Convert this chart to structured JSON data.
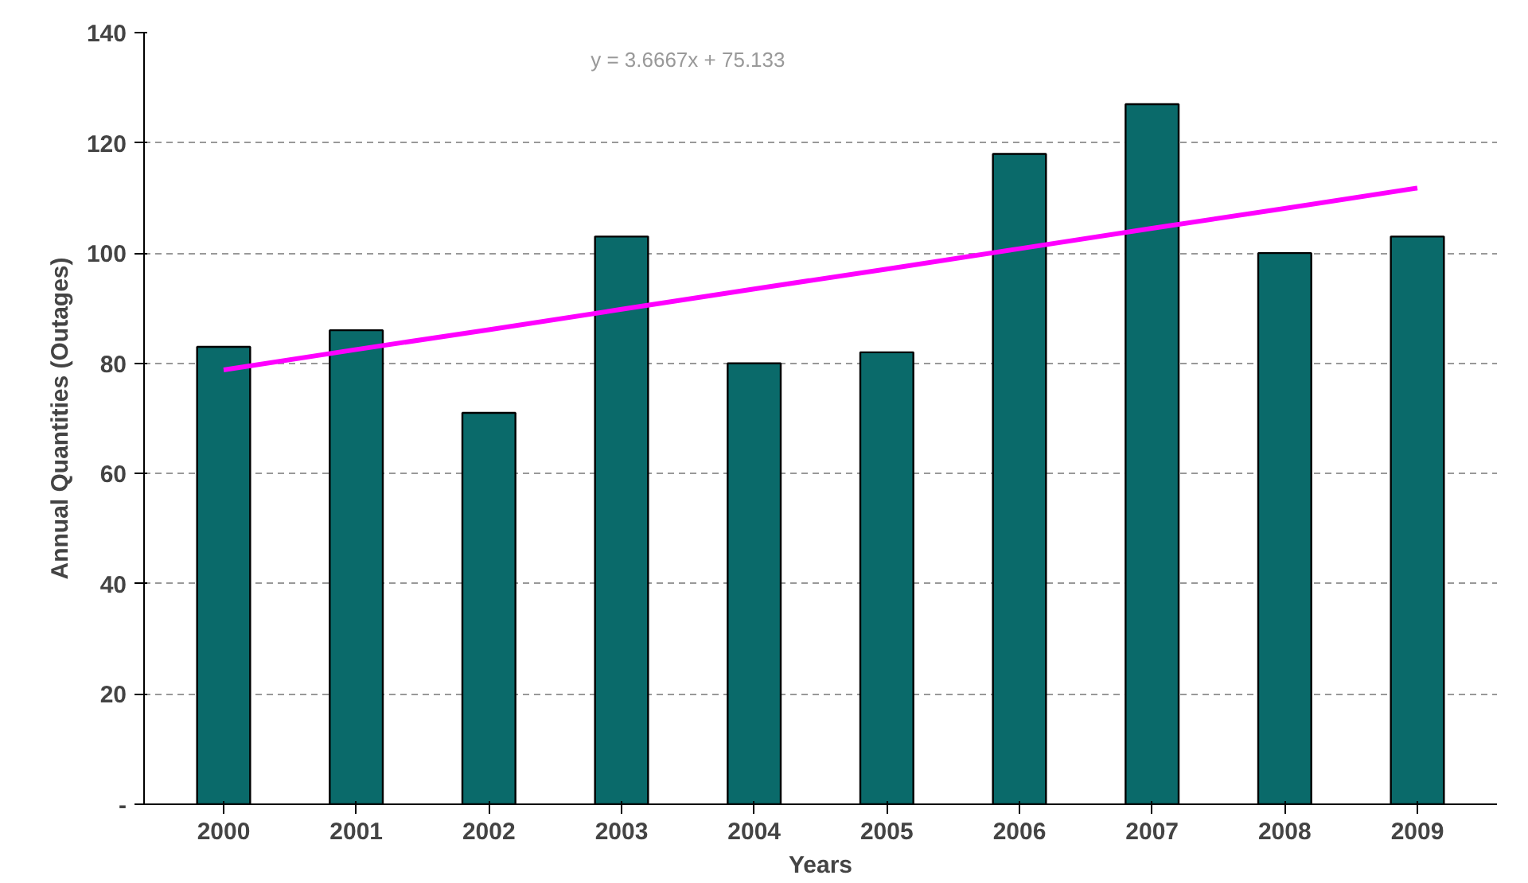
{
  "chart_data": {
    "type": "bar",
    "xlabel": "Years",
    "ylabel": "Annual Quantities (Outages)",
    "categories": [
      "2000",
      "2001",
      "2002",
      "2003",
      "2004",
      "2005",
      "2006",
      "2007",
      "2008",
      "2009"
    ],
    "series": [
      {
        "color": "#0a6a6a",
        "values": [
          83,
          86,
          71,
          103,
          80,
          82,
          118,
          127,
          100,
          103
        ]
      },
      {
        "type": "line",
        "color": "#ff00ff",
        "values": [
          78.8,
          82.5,
          86.1,
          89.8,
          93.5,
          97.1,
          100.8,
          104.5,
          108.1,
          111.8
        ]
      }
    ],
    "ylim": [
      0,
      140
    ],
    "yticks": [
      {
        "value": 0,
        "label": "-"
      },
      20,
      40,
      60,
      80,
      100,
      120,
      140
    ],
    "grid": "y",
    "annotations": [
      "y = 3.6667x + 75.133"
    ]
  }
}
